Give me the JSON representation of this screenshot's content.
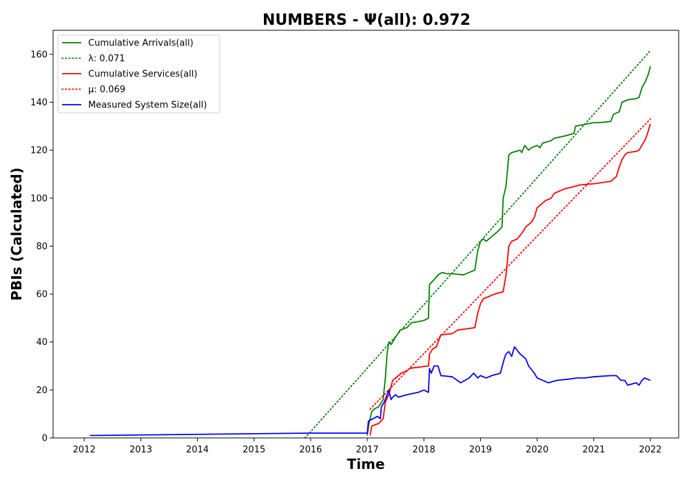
{
  "chart_data": {
    "type": "line",
    "title": "NUMBERS -  Ψ(all): 0.972",
    "xlabel": "Time",
    "ylabel": "PBIs (Calculated)",
    "xlim": [
      2011.45,
      2022.5
    ],
    "ylim": [
      0,
      170
    ],
    "xticks": [
      2012,
      2013,
      2014,
      2015,
      2016,
      2017,
      2018,
      2019,
      2020,
      2021,
      2022
    ],
    "yticks": [
      0,
      20,
      40,
      60,
      80,
      100,
      120,
      140,
      160
    ],
    "grid": false,
    "legend_position": "upper-left",
    "series": [
      {
        "name": "Cumulative Arrivals(all)",
        "style": "solid",
        "color": "#008000",
        "points": [
          [
            2017.0,
            1
          ],
          [
            2017.03,
            6
          ],
          [
            2017.08,
            11
          ],
          [
            2017.12,
            12
          ],
          [
            2017.2,
            13
          ],
          [
            2017.28,
            16
          ],
          [
            2017.32,
            25
          ],
          [
            2017.35,
            35
          ],
          [
            2017.38,
            40
          ],
          [
            2017.42,
            39
          ],
          [
            2017.45,
            40
          ],
          [
            2017.5,
            42
          ],
          [
            2017.58,
            45
          ],
          [
            2017.7,
            46
          ],
          [
            2017.78,
            48
          ],
          [
            2017.9,
            48.5
          ],
          [
            2018.0,
            49
          ],
          [
            2018.08,
            50
          ],
          [
            2018.1,
            64
          ],
          [
            2018.18,
            66
          ],
          [
            2018.25,
            68
          ],
          [
            2018.32,
            69
          ],
          [
            2018.4,
            68.5
          ],
          [
            2018.5,
            68.5
          ],
          [
            2018.7,
            68
          ],
          [
            2018.8,
            69
          ],
          [
            2018.9,
            70
          ],
          [
            2018.95,
            78
          ],
          [
            2019.0,
            82
          ],
          [
            2019.05,
            83
          ],
          [
            2019.1,
            82
          ],
          [
            2019.15,
            83
          ],
          [
            2019.2,
            84
          ],
          [
            2019.3,
            86
          ],
          [
            2019.38,
            88
          ],
          [
            2019.4,
            100
          ],
          [
            2019.45,
            105
          ],
          [
            2019.5,
            118
          ],
          [
            2019.55,
            119
          ],
          [
            2019.7,
            120
          ],
          [
            2019.73,
            119
          ],
          [
            2019.78,
            122
          ],
          [
            2019.85,
            120
          ],
          [
            2019.9,
            121
          ],
          [
            2020.0,
            122
          ],
          [
            2020.05,
            121
          ],
          [
            2020.1,
            123
          ],
          [
            2020.25,
            124
          ],
          [
            2020.3,
            125
          ],
          [
            2020.5,
            126
          ],
          [
            2020.65,
            127
          ],
          [
            2020.68,
            130
          ],
          [
            2020.9,
            131
          ],
          [
            2021.0,
            131.5
          ],
          [
            2021.1,
            131.5
          ],
          [
            2021.3,
            132
          ],
          [
            2021.35,
            135
          ],
          [
            2021.45,
            136
          ],
          [
            2021.5,
            140
          ],
          [
            2021.6,
            141
          ],
          [
            2021.75,
            141.5
          ],
          [
            2021.8,
            142
          ],
          [
            2021.85,
            146
          ],
          [
            2021.92,
            149
          ],
          [
            2021.97,
            152
          ],
          [
            2022.0,
            155
          ]
        ]
      },
      {
        "name": "λ: 0.071",
        "style": "dotted",
        "color": "#008000",
        "points": [
          [
            2015.9,
            0
          ],
          [
            2022.0,
            161.5
          ]
        ]
      },
      {
        "name": "Cumulative Services(all)",
        "style": "solid",
        "color": "#ff0000",
        "points": [
          [
            2017.05,
            1
          ],
          [
            2017.08,
            5
          ],
          [
            2017.2,
            6
          ],
          [
            2017.28,
            8
          ],
          [
            2017.32,
            15
          ],
          [
            2017.38,
            18
          ],
          [
            2017.45,
            24
          ],
          [
            2017.55,
            26
          ],
          [
            2017.6,
            27
          ],
          [
            2017.7,
            28
          ],
          [
            2017.75,
            29
          ],
          [
            2017.9,
            29.5
          ],
          [
            2018.08,
            30
          ],
          [
            2018.1,
            35
          ],
          [
            2018.15,
            37
          ],
          [
            2018.22,
            38
          ],
          [
            2018.3,
            43
          ],
          [
            2018.5,
            43.5
          ],
          [
            2018.6,
            45
          ],
          [
            2018.75,
            45.5
          ],
          [
            2018.9,
            46
          ],
          [
            2018.95,
            52
          ],
          [
            2019.0,
            56
          ],
          [
            2019.05,
            58
          ],
          [
            2019.15,
            59
          ],
          [
            2019.25,
            60
          ],
          [
            2019.4,
            61
          ],
          [
            2019.45,
            68
          ],
          [
            2019.5,
            80
          ],
          [
            2019.55,
            82
          ],
          [
            2019.65,
            83
          ],
          [
            2019.75,
            86
          ],
          [
            2019.8,
            88
          ],
          [
            2019.9,
            90
          ],
          [
            2019.95,
            92
          ],
          [
            2020.0,
            96
          ],
          [
            2020.05,
            97
          ],
          [
            2020.1,
            98
          ],
          [
            2020.15,
            99
          ],
          [
            2020.25,
            100
          ],
          [
            2020.3,
            102
          ],
          [
            2020.4,
            103
          ],
          [
            2020.5,
            104
          ],
          [
            2020.6,
            104.5
          ],
          [
            2020.75,
            105.5
          ],
          [
            2021.0,
            106
          ],
          [
            2021.3,
            107
          ],
          [
            2021.35,
            108
          ],
          [
            2021.4,
            109
          ],
          [
            2021.45,
            113
          ],
          [
            2021.5,
            116
          ],
          [
            2021.55,
            118
          ],
          [
            2021.6,
            119
          ],
          [
            2021.75,
            119.5
          ],
          [
            2021.8,
            120
          ],
          [
            2021.85,
            122
          ],
          [
            2021.9,
            124
          ],
          [
            2021.92,
            125
          ],
          [
            2021.95,
            127
          ],
          [
            2022.0,
            131
          ]
        ]
      },
      {
        "name": "μ: 0.069",
        "style": "dotted",
        "color": "#ff0000",
        "points": [
          [
            2017.05,
            12
          ],
          [
            2022.0,
            133
          ]
        ]
      },
      {
        "name": "Measured System Size(all)",
        "style": "solid",
        "color": "#0000ff",
        "points": [
          [
            2012.1,
            1
          ],
          [
            2016.0,
            2
          ],
          [
            2017.0,
            2
          ],
          [
            2017.02,
            7
          ],
          [
            2017.1,
            8
          ],
          [
            2017.18,
            9
          ],
          [
            2017.23,
            8
          ],
          [
            2017.25,
            13
          ],
          [
            2017.3,
            15
          ],
          [
            2017.35,
            18
          ],
          [
            2017.38,
            20
          ],
          [
            2017.42,
            16
          ],
          [
            2017.45,
            17
          ],
          [
            2017.5,
            18
          ],
          [
            2017.55,
            17
          ],
          [
            2017.7,
            18
          ],
          [
            2017.9,
            19
          ],
          [
            2018.0,
            20
          ],
          [
            2018.08,
            19
          ],
          [
            2018.1,
            29
          ],
          [
            2018.13,
            27
          ],
          [
            2018.18,
            30
          ],
          [
            2018.25,
            30
          ],
          [
            2018.3,
            26
          ],
          [
            2018.5,
            25.5
          ],
          [
            2018.65,
            23
          ],
          [
            2018.8,
            25
          ],
          [
            2018.88,
            27
          ],
          [
            2018.95,
            25
          ],
          [
            2019.0,
            26
          ],
          [
            2019.1,
            25
          ],
          [
            2019.2,
            26
          ],
          [
            2019.35,
            27
          ],
          [
            2019.42,
            33
          ],
          [
            2019.45,
            35
          ],
          [
            2019.5,
            36
          ],
          [
            2019.55,
            34
          ],
          [
            2019.6,
            38
          ],
          [
            2019.7,
            35
          ],
          [
            2019.75,
            34
          ],
          [
            2019.8,
            33
          ],
          [
            2019.85,
            30
          ],
          [
            2019.95,
            27
          ],
          [
            2020.0,
            25
          ],
          [
            2020.1,
            24
          ],
          [
            2020.2,
            23
          ],
          [
            2020.35,
            24
          ],
          [
            2020.55,
            24.5
          ],
          [
            2020.7,
            25
          ],
          [
            2020.85,
            25
          ],
          [
            2021.0,
            25.5
          ],
          [
            2021.3,
            26
          ],
          [
            2021.4,
            26
          ],
          [
            2021.48,
            24
          ],
          [
            2021.55,
            24
          ],
          [
            2021.6,
            22
          ],
          [
            2021.75,
            23
          ],
          [
            2021.8,
            22
          ],
          [
            2021.85,
            24
          ],
          [
            2021.9,
            25
          ],
          [
            2022.0,
            24
          ]
        ]
      }
    ]
  }
}
